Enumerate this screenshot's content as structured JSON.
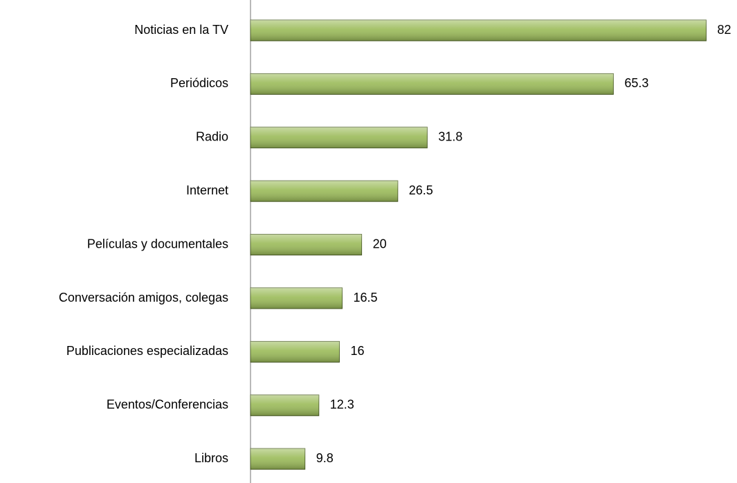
{
  "chart_data": {
    "type": "bar",
    "orientation": "horizontal",
    "categories": [
      "Noticias en la TV",
      "Periódicos",
      "Radio",
      "Internet",
      "Películas y documentales",
      "Conversación amigos, colegas",
      "Publicaciones especializadas",
      "Eventos/Conferencias",
      "Libros"
    ],
    "values": [
      82,
      65.3,
      31.8,
      26.5,
      20,
      16.5,
      16,
      12.3,
      9.8
    ],
    "color": "#9bbb59",
    "xlim": [
      0,
      100
    ]
  }
}
